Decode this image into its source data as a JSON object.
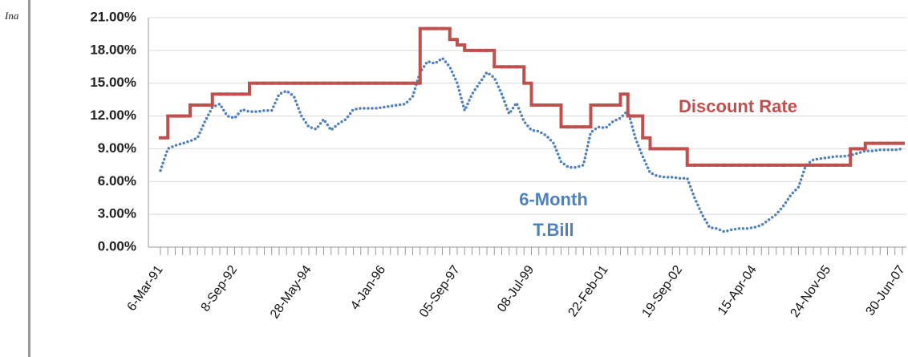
{
  "caption": "Ina",
  "chart_data": {
    "type": "line",
    "categories": [
      "6-Mar-91",
      null,
      null,
      null,
      null,
      null,
      null,
      null,
      null,
      null,
      "8-Sep-92",
      null,
      null,
      null,
      null,
      null,
      null,
      null,
      null,
      null,
      "28-May-94",
      null,
      null,
      null,
      null,
      null,
      null,
      null,
      null,
      null,
      "4-Jan-96",
      null,
      null,
      null,
      null,
      null,
      null,
      null,
      null,
      null,
      "05-Sep-97",
      null,
      null,
      null,
      null,
      null,
      null,
      null,
      null,
      null,
      "08-Jul-99",
      null,
      null,
      null,
      null,
      null,
      null,
      null,
      null,
      null,
      "22-Feb-01",
      null,
      null,
      null,
      null,
      null,
      null,
      null,
      null,
      null,
      "19-Sep-02",
      null,
      null,
      null,
      null,
      null,
      null,
      null,
      null,
      null,
      "15-Apr-04",
      null,
      null,
      null,
      null,
      null,
      null,
      null,
      null,
      null,
      "24-Nov-05",
      null,
      null,
      null,
      null,
      null,
      null,
      null,
      null,
      null,
      "30-Jun-07"
    ],
    "series": [
      {
        "name": "Discount Rate",
        "color": "#c0504d",
        "step": true,
        "values": [
          10,
          12,
          12,
          12,
          13,
          13,
          13,
          14,
          14,
          14,
          14,
          14,
          15,
          15,
          15,
          15,
          15,
          15,
          15,
          15,
          15,
          15,
          15,
          15,
          15,
          15,
          15,
          15,
          15,
          15,
          15,
          15,
          15,
          15,
          15,
          20,
          20,
          20,
          20,
          19,
          18.5,
          18,
          18,
          18,
          18,
          16.5,
          16.5,
          16.5,
          16.5,
          15,
          13,
          13,
          13,
          13,
          11,
          11,
          11,
          11,
          13,
          13,
          13,
          13,
          14,
          12,
          12,
          10,
          9,
          9,
          9,
          9,
          9,
          7.5,
          7.5,
          7.5,
          7.5,
          7.5,
          7.5,
          7.5,
          7.5,
          7.5,
          7.5,
          7.5,
          7.5,
          7.5,
          7.5,
          7.5,
          7.5,
          7.5,
          7.5,
          7.5,
          7.5,
          7.5,
          7.5,
          9,
          9,
          9.5,
          9.5,
          9.5,
          9.5,
          9.5,
          9.5
        ]
      },
      {
        "name": "6-Month T.Bill",
        "color": "#4f81bd",
        "style": "dotted",
        "values": [
          7,
          9,
          9.3,
          9.5,
          9.7,
          10,
          11.5,
          12.8,
          13.1,
          12,
          11.8,
          12.6,
          12.4,
          12.4,
          12.5,
          12.5,
          14,
          14.3,
          13.8,
          12,
          11,
          10.8,
          11.7,
          10.7,
          11.3,
          11.7,
          12.6,
          12.7,
          12.7,
          12.7,
          12.8,
          12.9,
          13,
          13.1,
          13.8,
          16,
          17,
          16.8,
          17.3,
          16.5,
          15,
          12.5,
          14,
          15,
          16,
          15.5,
          14,
          12.2,
          13.2,
          11.5,
          10.7,
          10.6,
          10.2,
          9.5,
          7.8,
          7.3,
          7.3,
          7.5,
          10.5,
          11,
          10.9,
          11.5,
          11.8,
          12.5,
          10,
          8.3,
          6.8,
          6.5,
          6.4,
          6.4,
          6.3,
          6.3,
          4.5,
          3,
          1.8,
          1.7,
          1.4,
          1.6,
          1.7,
          1.7,
          1.8,
          2,
          2.5,
          3,
          3.8,
          4.8,
          5.5,
          7.5,
          8,
          8.1,
          8.2,
          8.3,
          8.3,
          8.4,
          8.6,
          8.8,
          8.8,
          8.9,
          8.9,
          8.9,
          9
        ]
      }
    ],
    "ylim": [
      0,
      21
    ],
    "yticks": [
      {
        "value": 0,
        "label": "0.00%"
      },
      {
        "value": 3,
        "label": "3.00%"
      },
      {
        "value": 6,
        "label": "6.00%"
      },
      {
        "value": 9,
        "label": "9.00%"
      },
      {
        "value": 12,
        "label": "12.00%"
      },
      {
        "value": 15,
        "label": "15.00%"
      },
      {
        "value": 18,
        "label": "18.00%"
      },
      {
        "value": 21,
        "label": "21.00%"
      }
    ],
    "grid": true
  }
}
